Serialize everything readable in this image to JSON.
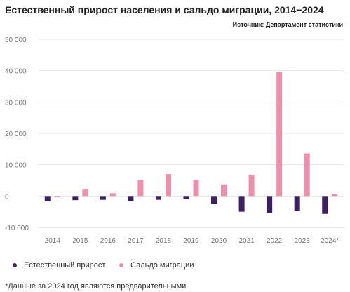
{
  "header": {
    "title": "Естественный прирост населения и сальдо миграции, 2014−2024",
    "source": "Источник: Департамент статистики"
  },
  "footnote": "*Данные за 2024 год являются предварительными",
  "colors": {
    "natural": "#3d1f66",
    "migration": "#ef8fab",
    "grid": "#e6e6e6",
    "axis": "#cccccc",
    "tick_text": "#777777"
  },
  "chart_data": {
    "type": "bar",
    "categories": [
      "2014",
      "2015",
      "2016",
      "2017",
      "2018",
      "2019",
      "2020",
      "2021",
      "2022",
      "2023",
      "2024*"
    ],
    "series": [
      {
        "name": "Естественный прирост",
        "values": [
          -1600,
          -1300,
          -1200,
          -1600,
          -1200,
          -1000,
          -2400,
          -5000,
          -5400,
          -4700,
          -5700
        ]
      },
      {
        "name": "Сальдо миграции",
        "values": [
          -400,
          2300,
          900,
          5100,
          7000,
          5100,
          3700,
          6800,
          39500,
          13600,
          600
        ]
      }
    ],
    "yticks": [
      -10000,
      0,
      10000,
      20000,
      30000,
      40000,
      50000
    ],
    "ytick_labels": [
      "-10 000",
      "0",
      "10 000",
      "20 000",
      "30 000",
      "40 000",
      "50 000"
    ],
    "ylim": [
      -10000,
      50000
    ],
    "legend_position": "bottom-left",
    "grid": true
  }
}
